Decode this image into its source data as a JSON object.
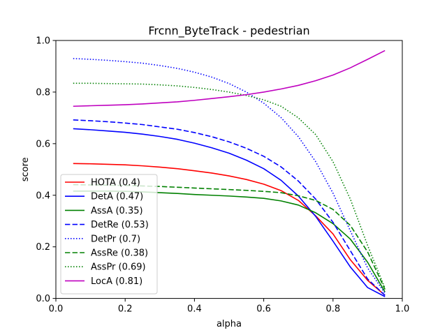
{
  "chart_data": {
    "type": "line",
    "title": "Frcnn_ByteTrack - pedestrian",
    "xlabel": "alpha",
    "ylabel": "score",
    "xlim": [
      0.0,
      1.0
    ],
    "ylim": [
      0.0,
      1.0
    ],
    "xticks": [
      "0.0",
      "0.2",
      "0.4",
      "0.6",
      "0.8",
      "1.0"
    ],
    "yticks": [
      "0.0",
      "0.2",
      "0.4",
      "0.6",
      "0.8",
      "1.0"
    ],
    "grid": false,
    "legend_position": "lower-left",
    "x": [
      0.05,
      0.1,
      0.15,
      0.2,
      0.25,
      0.3,
      0.35,
      0.4,
      0.45,
      0.5,
      0.55,
      0.6,
      0.65,
      0.7,
      0.75,
      0.8,
      0.85,
      0.9,
      0.95
    ],
    "series": [
      {
        "name": "HOTA (0.4)",
        "color": "#ff0000",
        "dash": "solid",
        "values": [
          0.523,
          0.522,
          0.52,
          0.518,
          0.514,
          0.509,
          0.503,
          0.495,
          0.486,
          0.475,
          0.461,
          0.443,
          0.418,
          0.38,
          0.32,
          0.25,
          0.15,
          0.07,
          0.012
        ]
      },
      {
        "name": "DetA (0.47)",
        "color": "#0000ff",
        "dash": "solid",
        "values": [
          0.658,
          0.654,
          0.649,
          0.644,
          0.637,
          0.628,
          0.617,
          0.602,
          0.584,
          0.563,
          0.536,
          0.503,
          0.458,
          0.397,
          0.318,
          0.222,
          0.122,
          0.042,
          0.007
        ]
      },
      {
        "name": "AssA (0.35)",
        "color": "#008000",
        "dash": "solid",
        "values": [
          0.416,
          0.416,
          0.416,
          0.415,
          0.413,
          0.41,
          0.407,
          0.403,
          0.4,
          0.397,
          0.393,
          0.388,
          0.378,
          0.362,
          0.332,
          0.29,
          0.23,
          0.14,
          0.025
        ]
      },
      {
        "name": "DetRe (0.53)",
        "color": "#0000ff",
        "dash": "dashed",
        "values": [
          0.692,
          0.689,
          0.685,
          0.68,
          0.674,
          0.665,
          0.656,
          0.643,
          0.627,
          0.607,
          0.582,
          0.551,
          0.51,
          0.455,
          0.385,
          0.295,
          0.185,
          0.075,
          0.012
        ]
      },
      {
        "name": "DetPr (0.7)",
        "color": "#0000ff",
        "dash": "dotted",
        "values": [
          0.93,
          0.927,
          0.923,
          0.918,
          0.912,
          0.903,
          0.892,
          0.877,
          0.858,
          0.833,
          0.8,
          0.757,
          0.701,
          0.627,
          0.53,
          0.408,
          0.262,
          0.118,
          0.02
        ]
      },
      {
        "name": "AssRe (0.38)",
        "color": "#008000",
        "dash": "dashed",
        "values": [
          0.441,
          0.44,
          0.439,
          0.438,
          0.436,
          0.434,
          0.431,
          0.428,
          0.425,
          0.422,
          0.419,
          0.415,
          0.41,
          0.398,
          0.38,
          0.345,
          0.283,
          0.18,
          0.035
        ]
      },
      {
        "name": "AssPr (0.69)",
        "color": "#008000",
        "dash": "dotted",
        "values": [
          0.834,
          0.834,
          0.833,
          0.832,
          0.831,
          0.828,
          0.824,
          0.818,
          0.81,
          0.8,
          0.787,
          0.77,
          0.745,
          0.7,
          0.635,
          0.53,
          0.385,
          0.205,
          0.04
        ]
      },
      {
        "name": "LocA (0.81)",
        "color": "#bf00bf",
        "dash": "solid",
        "values": [
          0.745,
          0.747,
          0.749,
          0.751,
          0.754,
          0.758,
          0.762,
          0.768,
          0.775,
          0.782,
          0.79,
          0.8,
          0.812,
          0.826,
          0.844,
          0.866,
          0.894,
          0.927,
          0.961
        ]
      }
    ]
  }
}
